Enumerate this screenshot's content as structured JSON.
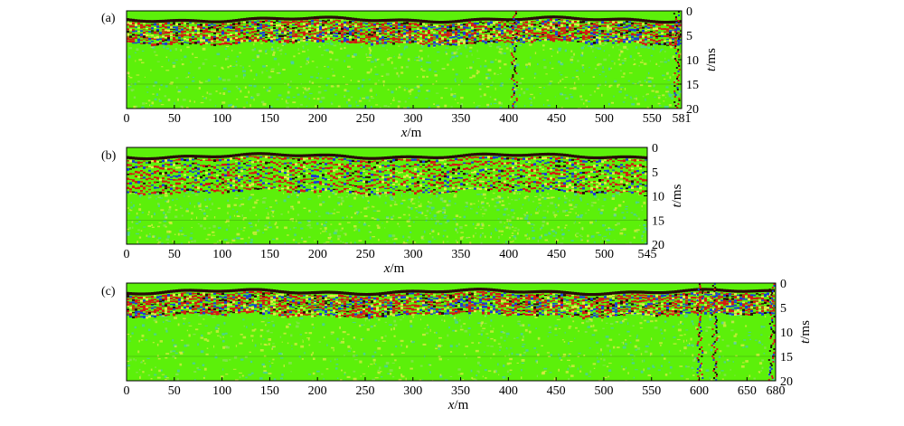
{
  "colors": {
    "background_green": "#5cf00a",
    "reflection_red": "#d41a14",
    "reflection_blue": "#1a3cd8",
    "reflection_dark": "#2a0a0a",
    "noise_yellow": "#e8e84a",
    "noise_cyan": "#46c8c0"
  },
  "chart_data": [
    {
      "type": "heatmap",
      "panel_label": "(a)",
      "x_axis_label_italic": "x",
      "x_axis_label_unit": "/m",
      "y_axis_label_italic": "t",
      "y_axis_label_unit": "/ms",
      "xlim": [
        0,
        581
      ],
      "ylim": [
        0,
        20
      ],
      "x_ticks": [
        0,
        50,
        100,
        150,
        200,
        250,
        300,
        350,
        400,
        450,
        500,
        550,
        581
      ],
      "y_ticks": [
        0,
        5,
        10,
        15,
        20
      ],
      "x_tick_labels": [
        "0",
        "50",
        "100",
        "150",
        "200",
        "250",
        "300",
        "350",
        "400",
        "450",
        "500",
        "550",
        "581"
      ],
      "y_tick_labels": [
        "0",
        "5",
        "10",
        "15",
        "20"
      ],
      "reflector_depth_ms": [
        1.5,
        6
      ],
      "vertical_anomalies_x": [
        405,
        575
      ]
    },
    {
      "type": "heatmap",
      "panel_label": "(b)",
      "x_axis_label_italic": "x",
      "x_axis_label_unit": "/m",
      "y_axis_label_italic": "t",
      "y_axis_label_unit": "/ms",
      "xlim": [
        0,
        545
      ],
      "ylim": [
        0,
        20
      ],
      "x_ticks": [
        0,
        50,
        100,
        150,
        200,
        250,
        300,
        350,
        400,
        450,
        500,
        545
      ],
      "y_ticks": [
        0,
        5,
        10,
        15,
        20
      ],
      "x_tick_labels": [
        "0",
        "50",
        "100",
        "150",
        "200",
        "250",
        "300",
        "350",
        "400",
        "450",
        "500",
        "545"
      ],
      "y_tick_labels": [
        "0",
        "5",
        "10",
        "15",
        "20"
      ],
      "reflector_depth_ms": [
        1.5,
        9
      ],
      "vertical_anomalies_x": []
    },
    {
      "type": "heatmap",
      "panel_label": "(c)",
      "x_axis_label_italic": "x",
      "x_axis_label_unit": "/m",
      "y_axis_label_italic": "t",
      "y_axis_label_unit": "/ms",
      "xlim": [
        0,
        680
      ],
      "ylim": [
        0,
        20
      ],
      "x_ticks": [
        0,
        50,
        100,
        150,
        200,
        250,
        300,
        350,
        400,
        450,
        500,
        550,
        600,
        650,
        680
      ],
      "y_ticks": [
        0,
        5,
        10,
        15,
        20
      ],
      "x_tick_labels": [
        "0",
        "50",
        "100",
        "150",
        "200",
        "250",
        "300",
        "350",
        "400",
        "450",
        "500",
        "550",
        "600",
        "650",
        "680"
      ],
      "y_tick_labels": [
        "0",
        "5",
        "10",
        "15",
        "20"
      ],
      "reflector_depth_ms": [
        1.5,
        6
      ],
      "vertical_anomalies_x": [
        600,
        615,
        675
      ]
    }
  ]
}
